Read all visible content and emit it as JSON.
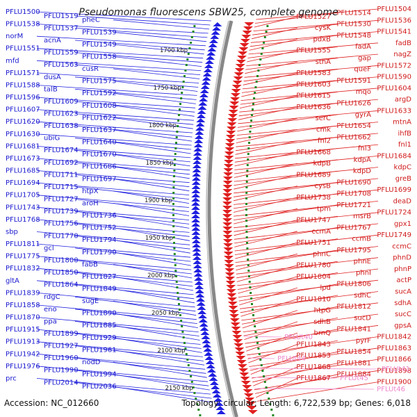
{
  "title": "Pseudomonas fluorescens SBW25, complete genome",
  "footer": {
    "accession": "Accession: NC_012660",
    "summary": "Topology: circular; Length: 6,722,539 bp; Genes: 6,018"
  },
  "colors": {
    "forward": "#2020e0",
    "reverse": "#e02020",
    "rna": "#f090d0",
    "backbone": "#888888",
    "ticks": "#228822"
  },
  "scale_labels": [
    "1700 kbp",
    "1750 kbp",
    "1800 kbp",
    "1850 kbp",
    "1900 kbp",
    "1950 kbp",
    "2000 kbp",
    "2050 kbp",
    "2100 kbp",
    "2150 kbp"
  ],
  "left_labels": [
    "PFLU1500",
    "PFLU1519",
    "pheC",
    "PFLU1538",
    "PFLU1537",
    "PFLU1539",
    "norM",
    "acnA",
    "PFLU1549",
    "PFLU1551",
    "PFLU1559",
    "PFLU1558",
    "mfd",
    "PFLU1563",
    "cusR",
    "PFLU1571",
    "dusA",
    "PFLU1575",
    "PFLU1588",
    "talB",
    "PFLU1592",
    "PFLU1596",
    "PFLU1609",
    "PFLU1608",
    "PFLU1607",
    "PFLU1623",
    "PFLU1622",
    "PFLU1620",
    "PFLU1638",
    "PFLU1637",
    "PFLU1630",
    "ubiG",
    "PFLU1640",
    "PFLU1681",
    "PFLU1674",
    "PFLU1670",
    "PFLU1673",
    "PFLU1692",
    "PFLU1686",
    "PFLU1685",
    "PFLU1711",
    "PFLU1697",
    "PFLU1694",
    "PFLU1715",
    "htpX",
    "PFLU1705",
    "PFLU1727",
    "aroH",
    "PFLU1743",
    "PFLU1739",
    "PFLU1736",
    "PFLU1768",
    "PFLU1756",
    "PFLU1752",
    "sbp",
    "PFLU1770",
    "PFLU1794",
    "PFLU1811",
    "gcl",
    "PFLU1790",
    "PFLU1775",
    "PFLU1800",
    "fabB",
    "PFLU1832",
    "PFLU1850",
    "PFLU1827",
    "gltA",
    "PFLU1864",
    "PFLU1849",
    "PFLU1839",
    "rdgC",
    "sugE",
    "PFLU1858",
    "eno",
    "PFLU1890",
    "PFLU1870",
    "ppa",
    "PFLU1885",
    "PFLU1915",
    "PFLU1899",
    "PFLU1929",
    "PFLU1913",
    "PFLU1927",
    "PFLU1961",
    "PFLU1942",
    "PFLU1960",
    "nodD",
    "PFLU1976",
    "PFLU1990",
    "PFLU1994",
    "prc",
    "PFLU2014",
    "PFLU2036"
  ],
  "right_labels": [
    "PFLU1504",
    "PFLU1514",
    "PFLU1527",
    "PFLU1536",
    "PFLU1530",
    "cysK",
    "PFLU1541",
    "PFLU1548",
    "pdxB",
    "fadB",
    "fadA",
    "PFLU1555",
    "nagZ",
    "gap",
    "sthA",
    "PFLU1572",
    "queF",
    "PFLU1583",
    "PFLU1590",
    "PFLU1591",
    "PFLU1603",
    "PFLU1604",
    "mqo",
    "PFLU1615",
    "argD",
    "PFLU1626",
    "PFLU1636",
    "PFLU1633",
    "gyrA",
    "serC",
    "mtnA",
    "PFLU1654",
    "cmk",
    "ihfB",
    "PFLU1662",
    "fnl2",
    "fnl1",
    "fnl3",
    "PFLU1668",
    "PFLU1684",
    "kdpA",
    "kdpB",
    "kdpC",
    "kdpD",
    "PFLU1689",
    "greB",
    "PFLU1690",
    "cysB",
    "PFLU1699",
    "PFLU1708",
    "PFLU1738",
    "deaD",
    "PFLU1721",
    "tpm",
    "PFLU1724",
    "msrB",
    "PFLU1747",
    "gpx1",
    "PFLU1767",
    "ccmA",
    "PFLU1749",
    "ccmB",
    "PFLU1751",
    "ccmC",
    "PFLU1795",
    "phnC",
    "phnD",
    "phnE",
    "PFLU1780",
    "phnP",
    "phnI",
    "PFLU1804",
    "actP",
    "PFLU1806",
    "lpd",
    "sucA",
    "sdhC",
    "PFLU1810",
    "sdhA",
    "PFLU1812",
    "htpG",
    "sucC",
    "sucD",
    "sdhB",
    "gpsA",
    "PFLU1841",
    "brnQ",
    "PFLU1842",
    "pyrF",
    "PFLU1843",
    "PFLU1863",
    "PFLU1854",
    "PFLU1853",
    "PFLU1866",
    "PFLU1881",
    "PFLU1868",
    "PFLU1898",
    "PFLU1884",
    "PFLU1867",
    "PFLU1900"
  ],
  "rna_labels": [
    "PFLUt40",
    "PFLUt44",
    "PFLUt45",
    "PFLUt41",
    "PFLUt46"
  ]
}
